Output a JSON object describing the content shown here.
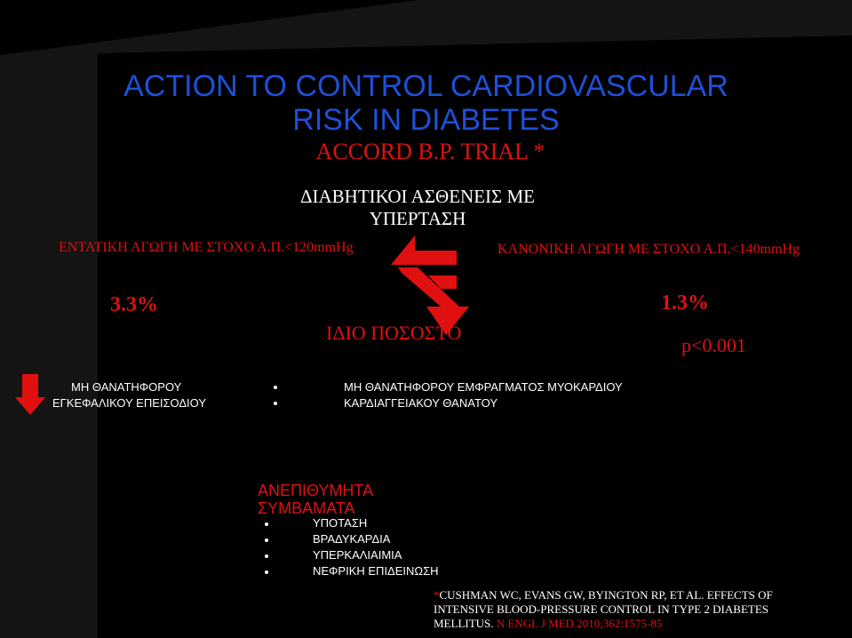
{
  "title": {
    "line1": "ACTION TO CONTROL CARDIOVASCULAR",
    "line2": "RISK IN DIABETES"
  },
  "trial": "ACCORD B.P. TRIAL *",
  "population": {
    "line1": "ΔΙΑΒΗΤΙΚΟΙ ΑΣΘΕΝΕΙΣ ΜΕ",
    "line2": "ΥΠΕΡΤΑΣΗ"
  },
  "intensive_arm": "ΕΝΤΑΤΙΚΗ ΑΓΩΓΗ ΜΕ ΣΤΟΧΟ Α.Π.<120mmHg",
  "standard_arm": "ΚΑΝΟΝΙΚΗ ΑΓΩΓΗ ΜΕ ΣΤΟΧΟ Α.Π.<140mmHg",
  "intensive_pct": "3.3%",
  "standard_pct": "1.3%",
  "same_rate": "ΙΔΙΟ  ΠΟΣΟΣΤΟ",
  "p_value": "p<0.001",
  "stroke": {
    "line1": "ΜΗ  ΘΑΝΑΤΗΦΟΡΟΥ",
    "line2": "ΕΓΚΕΦΑΛΙΚΟΥ   ΕΠΕΙΣΟΔΙΟΥ"
  },
  "outcomes": [
    "ΜΗ  ΘΑΝΑΤΗΦΟΡΟΥ  ΕΜΦΡΑΓΜΑΤΟΣ  ΜΥΟΚΑΡΔΙΟΥ",
    "ΚΑΡΔΙΑΓΓΕΙΑΚΟΥ  ΘΑΝΑΤΟΥ"
  ],
  "adverse": {
    "heading_line1": "ΑΝΕΠΙΘΥΜΗΤΑ",
    "heading_line2": "ΣΥΜΒΑΜΑΤΑ",
    "items": [
      "ΥΠΟΤΑΣΗ",
      "ΒΡΑΔΥΚΑΡΔΙΑ",
      "ΥΠΕΡΚΑΛΙΑΙΜΙΑ",
      "ΝΕΦΡΙΚΗ ΕΠΙΔΕΙΝΩΣΗ"
    ]
  },
  "reference": {
    "marker": "*",
    "line1": "CUSHMAN WC, EVANS GW, BYINGTON RP, ET AL. EFFECTS OF",
    "line2": "INTENSIVE BLOOD-PRESSURE CONTROL IN TYPE 2 DIABETES",
    "line3_a": "MELLITUS.",
    "line3_b": " N ENGL J MED 2010;362:1575-85"
  },
  "icons": [
    "double-arrow-icon",
    "down-arrow-icon"
  ],
  "colors": {
    "background": "#000000",
    "title": "#1e50d8",
    "accent": "#e01010",
    "text": "#ffffff"
  }
}
